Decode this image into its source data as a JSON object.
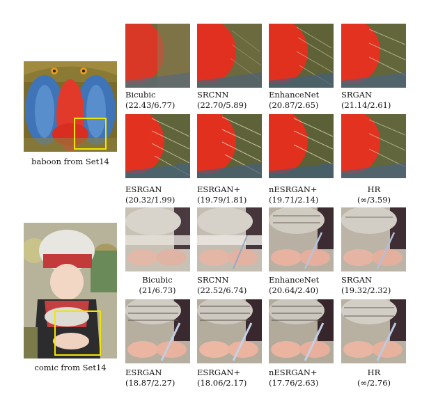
{
  "figure": {
    "sources": [
      {
        "caption": "baboon from Set14"
      },
      {
        "caption": "comic from Set14"
      }
    ],
    "baboon": {
      "row1": [
        {
          "name": "Bicubic",
          "score": "(22.43/6.77)"
        },
        {
          "name": "SRCNN",
          "score": "(22.70/5.89)"
        },
        {
          "name": "EnhanceNet",
          "score": "(20.87/2.65)"
        },
        {
          "name": "SRGAN",
          "score": "(21.14/2.61)"
        }
      ],
      "row2": [
        {
          "name": "ESRGAN",
          "score": "(20.32/1.99)"
        },
        {
          "name": "ESRGAN+",
          "score": "(19.79/1.81)"
        },
        {
          "name": "nESRGAN+",
          "score": "(19.71/2.14)"
        },
        {
          "name": "HR",
          "score": "(∞/3.59)"
        }
      ]
    },
    "comic": {
      "row1": [
        {
          "name": "Bicubic",
          "score": "(21/6.73)"
        },
        {
          "name": "SRCNN",
          "score": "(22.52/6.74)"
        },
        {
          "name": "EnhanceNet",
          "score": "(20.64/2.40)"
        },
        {
          "name": "SRGAN",
          "score": "(19.32/2.32)"
        }
      ],
      "row2": [
        {
          "name": "ESRGAN",
          "score": "(18.87/2.27)"
        },
        {
          "name": "ESRGAN+",
          "score": "(18.06/2.17)"
        },
        {
          "name": "nESRGAN+",
          "score": "(17.76/2.63)"
        },
        {
          "name": "HR",
          "score": "(∞/2.76)"
        }
      ]
    }
  }
}
